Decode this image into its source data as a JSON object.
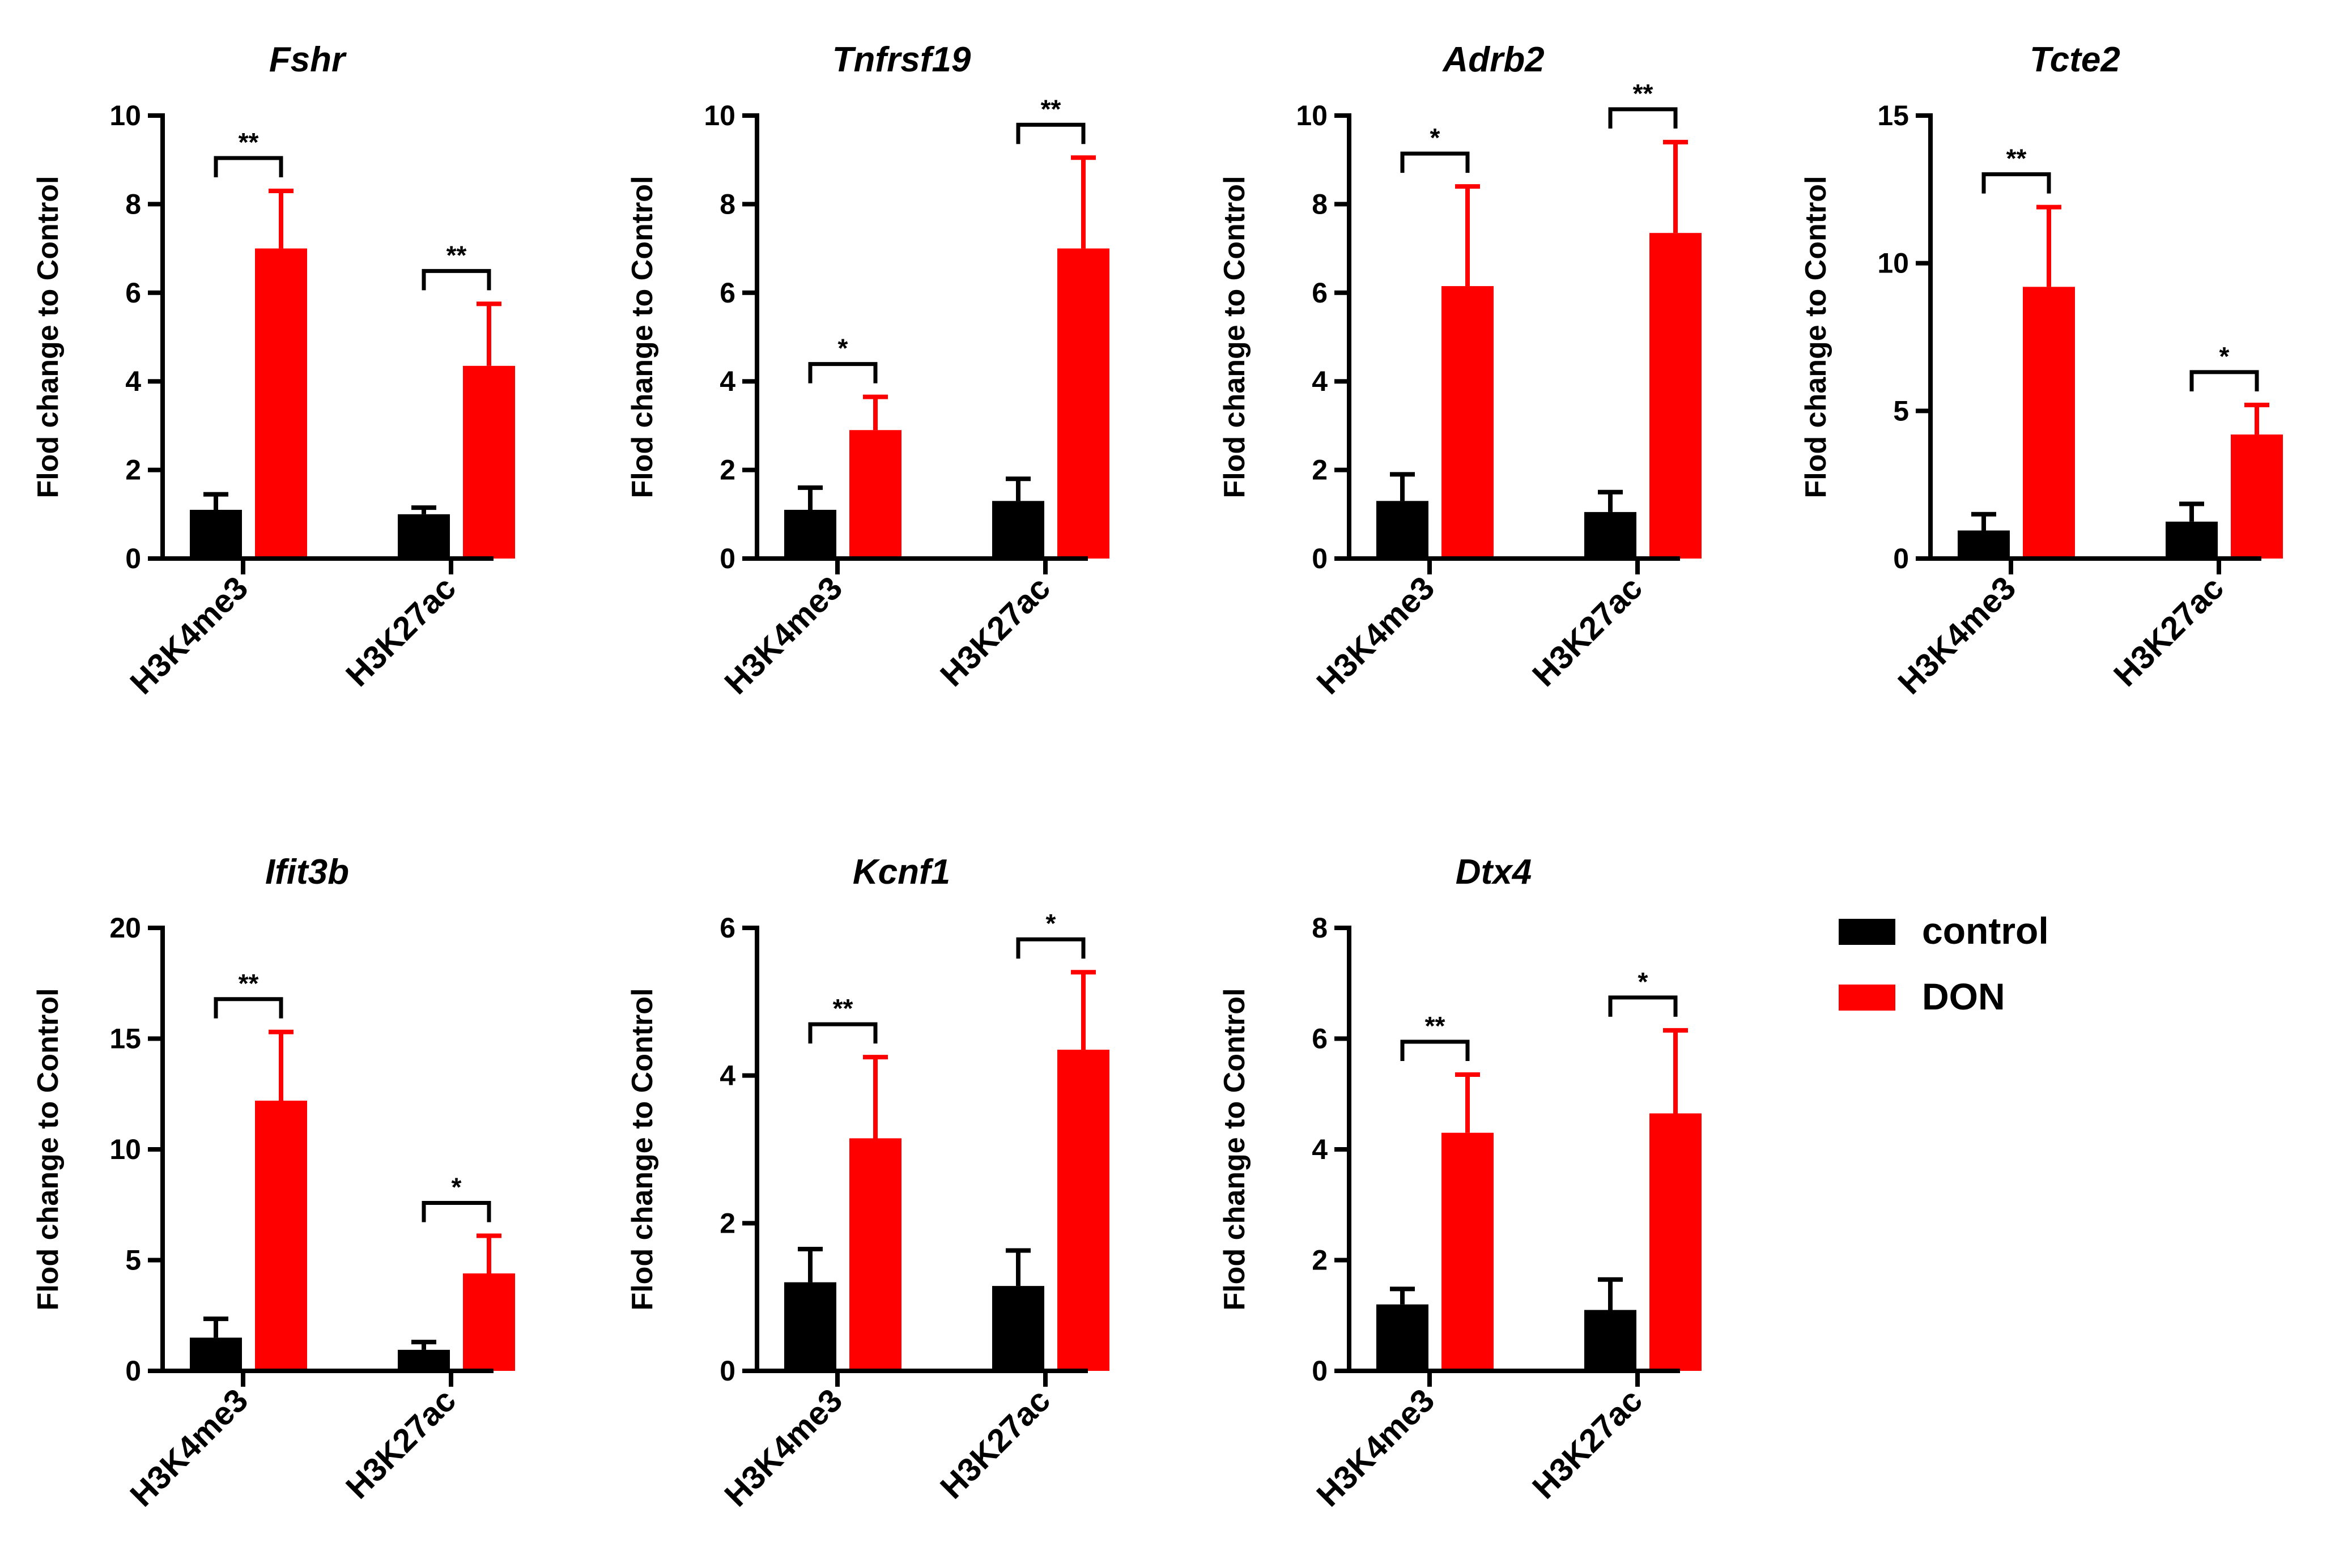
{
  "colors": {
    "control": "#000000",
    "DON": "#ff0000"
  },
  "legend": [
    {
      "key": "control",
      "label": "control"
    },
    {
      "key": "DON",
      "label": "DON"
    }
  ],
  "chart_data": [
    {
      "type": "bar",
      "title": "Fshr",
      "ylabel": "Flod change to Control",
      "categories": [
        "H3K4me3",
        "H3K27ac"
      ],
      "ylim": [
        0,
        10
      ],
      "yticks": [
        "0",
        "2",
        "4",
        "6",
        "8",
        "10"
      ],
      "series": [
        {
          "name": "control",
          "values": [
            1.1,
            1.0
          ],
          "errors": [
            0.35,
            0.15
          ]
        },
        {
          "name": "DON",
          "values": [
            7.0,
            4.35
          ],
          "errors": [
            1.3,
            1.4
          ]
        }
      ],
      "significance": [
        "**",
        "**"
      ]
    },
    {
      "type": "bar",
      "title": "Tnfrsf19",
      "ylabel": "Flod change to Control",
      "categories": [
        "H3K4me3",
        "H3K27ac"
      ],
      "ylim": [
        0,
        10
      ],
      "yticks": [
        "0",
        "2",
        "4",
        "6",
        "8",
        "10"
      ],
      "series": [
        {
          "name": "control",
          "values": [
            1.1,
            1.3
          ],
          "errors": [
            0.5,
            0.5
          ]
        },
        {
          "name": "DON",
          "values": [
            2.9,
            7.0
          ],
          "errors": [
            0.75,
            2.05
          ]
        }
      ],
      "significance": [
        "*",
        "**"
      ]
    },
    {
      "type": "bar",
      "title": "Adrb2",
      "ylabel": "Flod change to Control",
      "categories": [
        "H3K4me3",
        "H3K27ac"
      ],
      "ylim": [
        0,
        10
      ],
      "yticks": [
        "0",
        "2",
        "4",
        "6",
        "8",
        "10"
      ],
      "series": [
        {
          "name": "control",
          "values": [
            1.3,
            1.05
          ],
          "errors": [
            0.6,
            0.45
          ]
        },
        {
          "name": "DON",
          "values": [
            6.15,
            7.35
          ],
          "errors": [
            2.25,
            2.05
          ]
        }
      ],
      "significance": [
        "*",
        "**"
      ]
    },
    {
      "type": "bar",
      "title": "Tcte2",
      "ylabel": "Flod change to Control",
      "categories": [
        "H3K4me3",
        "H3K27ac"
      ],
      "ylim": [
        0,
        15
      ],
      "yticks": [
        "0",
        "5",
        "10",
        "15"
      ],
      "series": [
        {
          "name": "control",
          "values": [
            0.95,
            1.25
          ],
          "errors": [
            0.55,
            0.6
          ]
        },
        {
          "name": "DON",
          "values": [
            9.2,
            4.2
          ],
          "errors": [
            2.7,
            1.0
          ]
        }
      ],
      "significance": [
        "**",
        "*"
      ]
    },
    {
      "type": "bar",
      "title": "Ifit3b",
      "ylabel": "Flod change to Control",
      "categories": [
        "H3K4me3",
        "H3K27ac"
      ],
      "ylim": [
        0,
        20
      ],
      "yticks": [
        "0",
        "5",
        "10",
        "15",
        "20"
      ],
      "series": [
        {
          "name": "control",
          "values": [
            1.5,
            0.95
          ],
          "errors": [
            0.85,
            0.35
          ]
        },
        {
          "name": "DON",
          "values": [
            12.2,
            4.4
          ],
          "errors": [
            3.1,
            1.7
          ]
        }
      ],
      "significance": [
        "**",
        "*"
      ]
    },
    {
      "type": "bar",
      "title": "Kcnf1",
      "ylabel": "Flod change to Control",
      "categories": [
        "H3K4me3",
        "H3K27ac"
      ],
      "ylim": [
        0,
        6
      ],
      "yticks": [
        "0",
        "2",
        "4",
        "6"
      ],
      "series": [
        {
          "name": "control",
          "values": [
            1.2,
            1.15
          ],
          "errors": [
            0.45,
            0.48
          ]
        },
        {
          "name": "DON",
          "values": [
            3.15,
            4.35
          ],
          "errors": [
            1.1,
            1.05
          ]
        }
      ],
      "significance": [
        "**",
        "*"
      ]
    },
    {
      "type": "bar",
      "title": "Dtx4",
      "ylabel": "Flod change to Control",
      "categories": [
        "H3K4me3",
        "H3K27ac"
      ],
      "ylim": [
        0,
        8
      ],
      "yticks": [
        "0",
        "2",
        "4",
        "6",
        "8"
      ],
      "series": [
        {
          "name": "control",
          "values": [
            1.2,
            1.1
          ],
          "errors": [
            0.28,
            0.55
          ]
        },
        {
          "name": "DON",
          "values": [
            4.3,
            4.65
          ],
          "errors": [
            1.05,
            1.5
          ]
        }
      ],
      "significance": [
        "**",
        "*"
      ]
    }
  ]
}
